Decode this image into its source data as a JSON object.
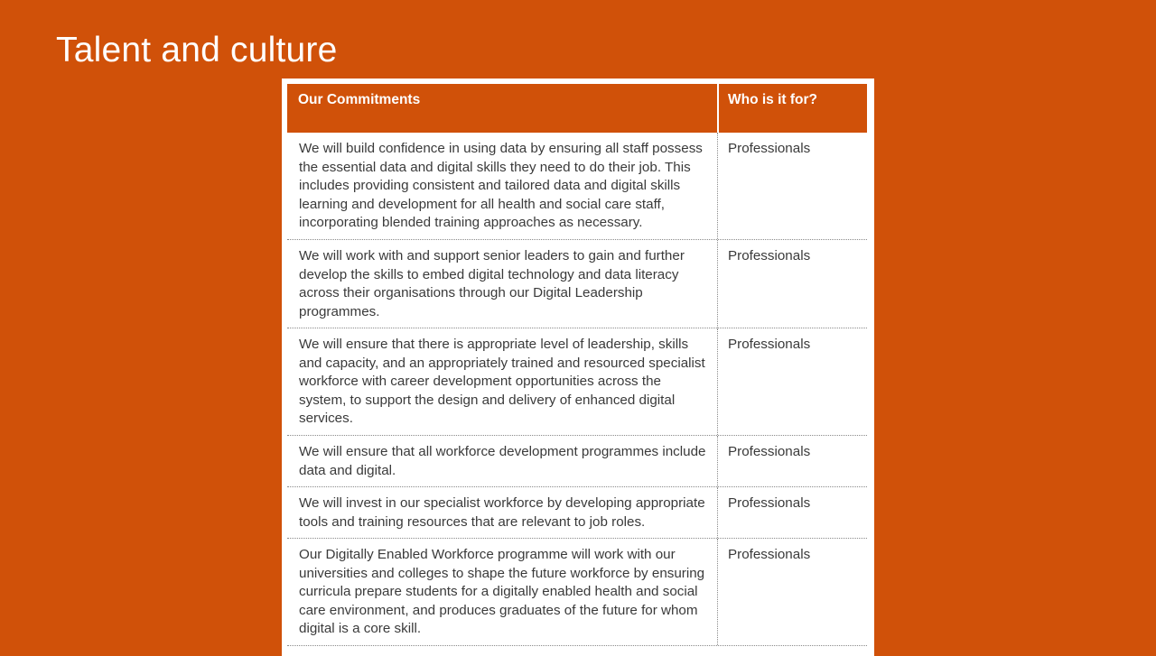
{
  "slide": {
    "title": "Talent and culture"
  },
  "table": {
    "headers": [
      "Our Commitments",
      "Who is it for?"
    ],
    "rows": [
      {
        "commitment": "We will build confidence in using data by ensuring all staff possess the essential data and digital skills they need to do their job. This includes providing consistent and tailored data and digital skills learning and development for all health and social care staff, incorporating blended training approaches as necessary.",
        "who": "Professionals"
      },
      {
        "commitment": "We will work with and support senior leaders to gain and further develop the skills to embed digital technology and data literacy across their organisations through our Digital Leadership programmes.",
        "who": "Professionals"
      },
      {
        "commitment": "We will ensure that there is appropriate level of leadership, skills and capacity, and an appropriately trained and resourced specialist workforce with career development opportunities across the system, to support the design and delivery of enhanced digital services.",
        "who": "Professionals"
      },
      {
        "commitment": "We will ensure that all workforce development programmes include data and digital.",
        "who": "Professionals"
      },
      {
        "commitment": "We will invest in our specialist workforce by developing appropriate tools and training resources that are relevant to job roles.",
        "who": "Professionals"
      },
      {
        "commitment": "Our Digitally Enabled Workforce programme will work with our universities and colleges to shape the future workforce by ensuring curricula prepare students for a digitally enabled health and social care environment, and produces graduates of the future for whom digital is a core skill.",
        "who": "Professionals"
      }
    ]
  },
  "colors": {
    "accent": "#D05109",
    "text": "#3a3a3a",
    "background_card": "#ffffff"
  }
}
